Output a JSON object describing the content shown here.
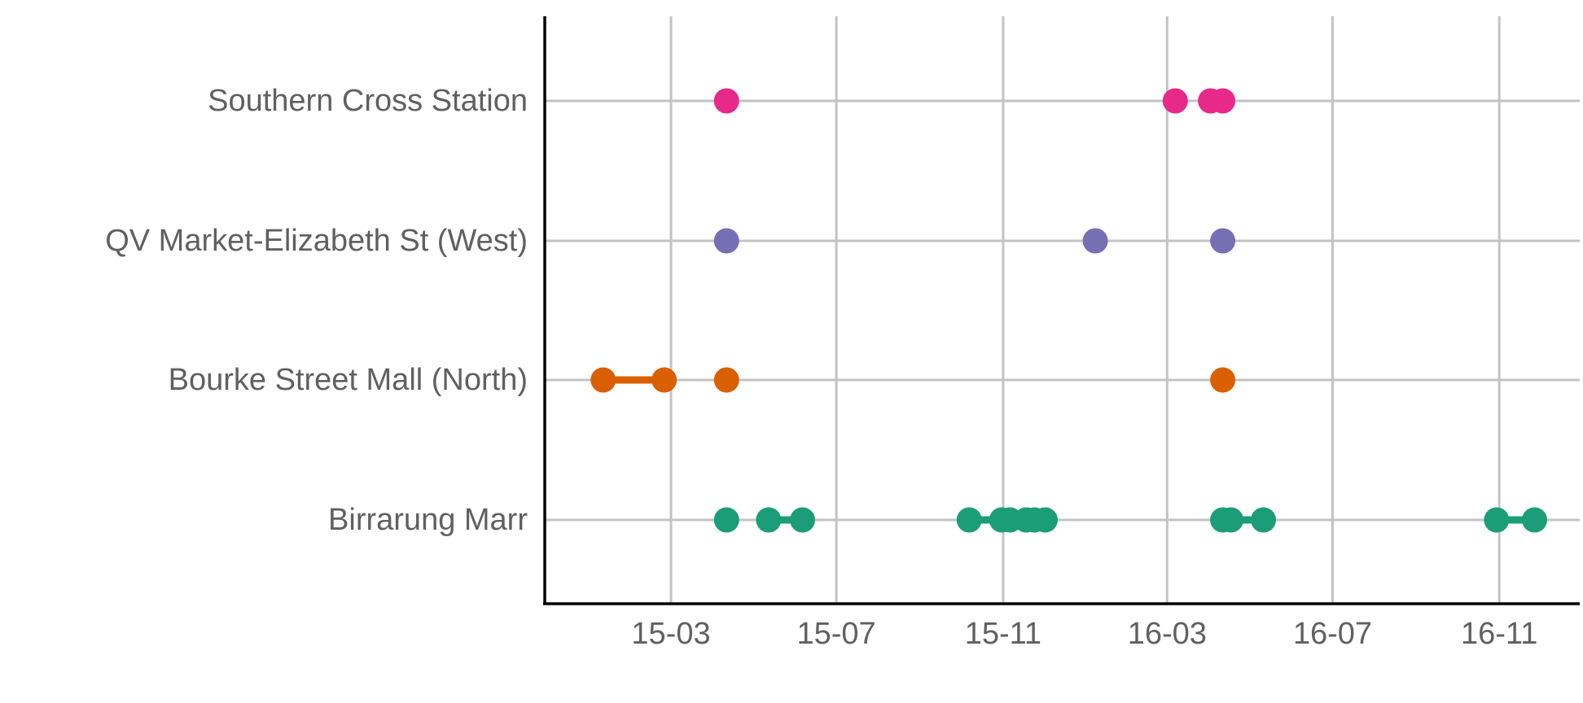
{
  "chart_data": {
    "type": "scatter",
    "title": "",
    "xlabel": "",
    "ylabel": "",
    "x_axis": {
      "type": "date",
      "ticks": [
        {
          "date": "2015-03-01",
          "label": "15-03"
        },
        {
          "date": "2015-07-01",
          "label": "15-07"
        },
        {
          "date": "2015-11-01",
          "label": "15-11"
        },
        {
          "date": "2016-03-01",
          "label": "16-03"
        },
        {
          "date": "2016-07-01",
          "label": "16-07"
        },
        {
          "date": "2016-11-01",
          "label": "16-11"
        }
      ],
      "range": [
        "2014-11-28",
        "2017-01-01"
      ]
    },
    "grid": true,
    "categories": [
      "Southern Cross Station",
      "QV Market-Elizabeth St (West)",
      "Bourke Street Mall (North)",
      "Birrarung Marr"
    ],
    "series": [
      {
        "category": "Southern Cross Station",
        "color": "#e7298a",
        "points": [
          "2015-04-11",
          "2016-03-07",
          "2016-04-02",
          "2016-04-11"
        ],
        "segments": []
      },
      {
        "category": "QV Market-Elizabeth St (West)",
        "color": "#7570b3",
        "points": [
          "2015-04-11",
          "2016-01-08",
          "2016-04-11"
        ],
        "segments": []
      },
      {
        "category": "Bourke Street Mall (North)",
        "color": "#d95f02",
        "points": [
          "2015-01-10",
          "2015-02-24",
          "2015-04-11",
          "2016-04-11"
        ],
        "segments": [
          [
            "2015-01-10",
            "2015-02-24"
          ]
        ]
      },
      {
        "category": "Birrarung Marr",
        "color": "#1b9e77",
        "points": [
          "2015-04-11",
          "2015-05-12",
          "2015-06-06",
          "2015-10-07",
          "2015-10-31",
          "2015-11-06",
          "2015-11-18",
          "2015-11-24",
          "2015-12-02",
          "2016-04-11",
          "2016-04-17",
          "2016-05-11",
          "2016-10-30",
          "2016-11-27"
        ],
        "segments": [
          [
            "2015-05-12",
            "2015-06-06"
          ],
          [
            "2015-10-07",
            "2015-12-02"
          ],
          [
            "2016-04-11",
            "2016-05-11"
          ],
          [
            "2016-10-30",
            "2016-11-27"
          ]
        ]
      }
    ]
  }
}
